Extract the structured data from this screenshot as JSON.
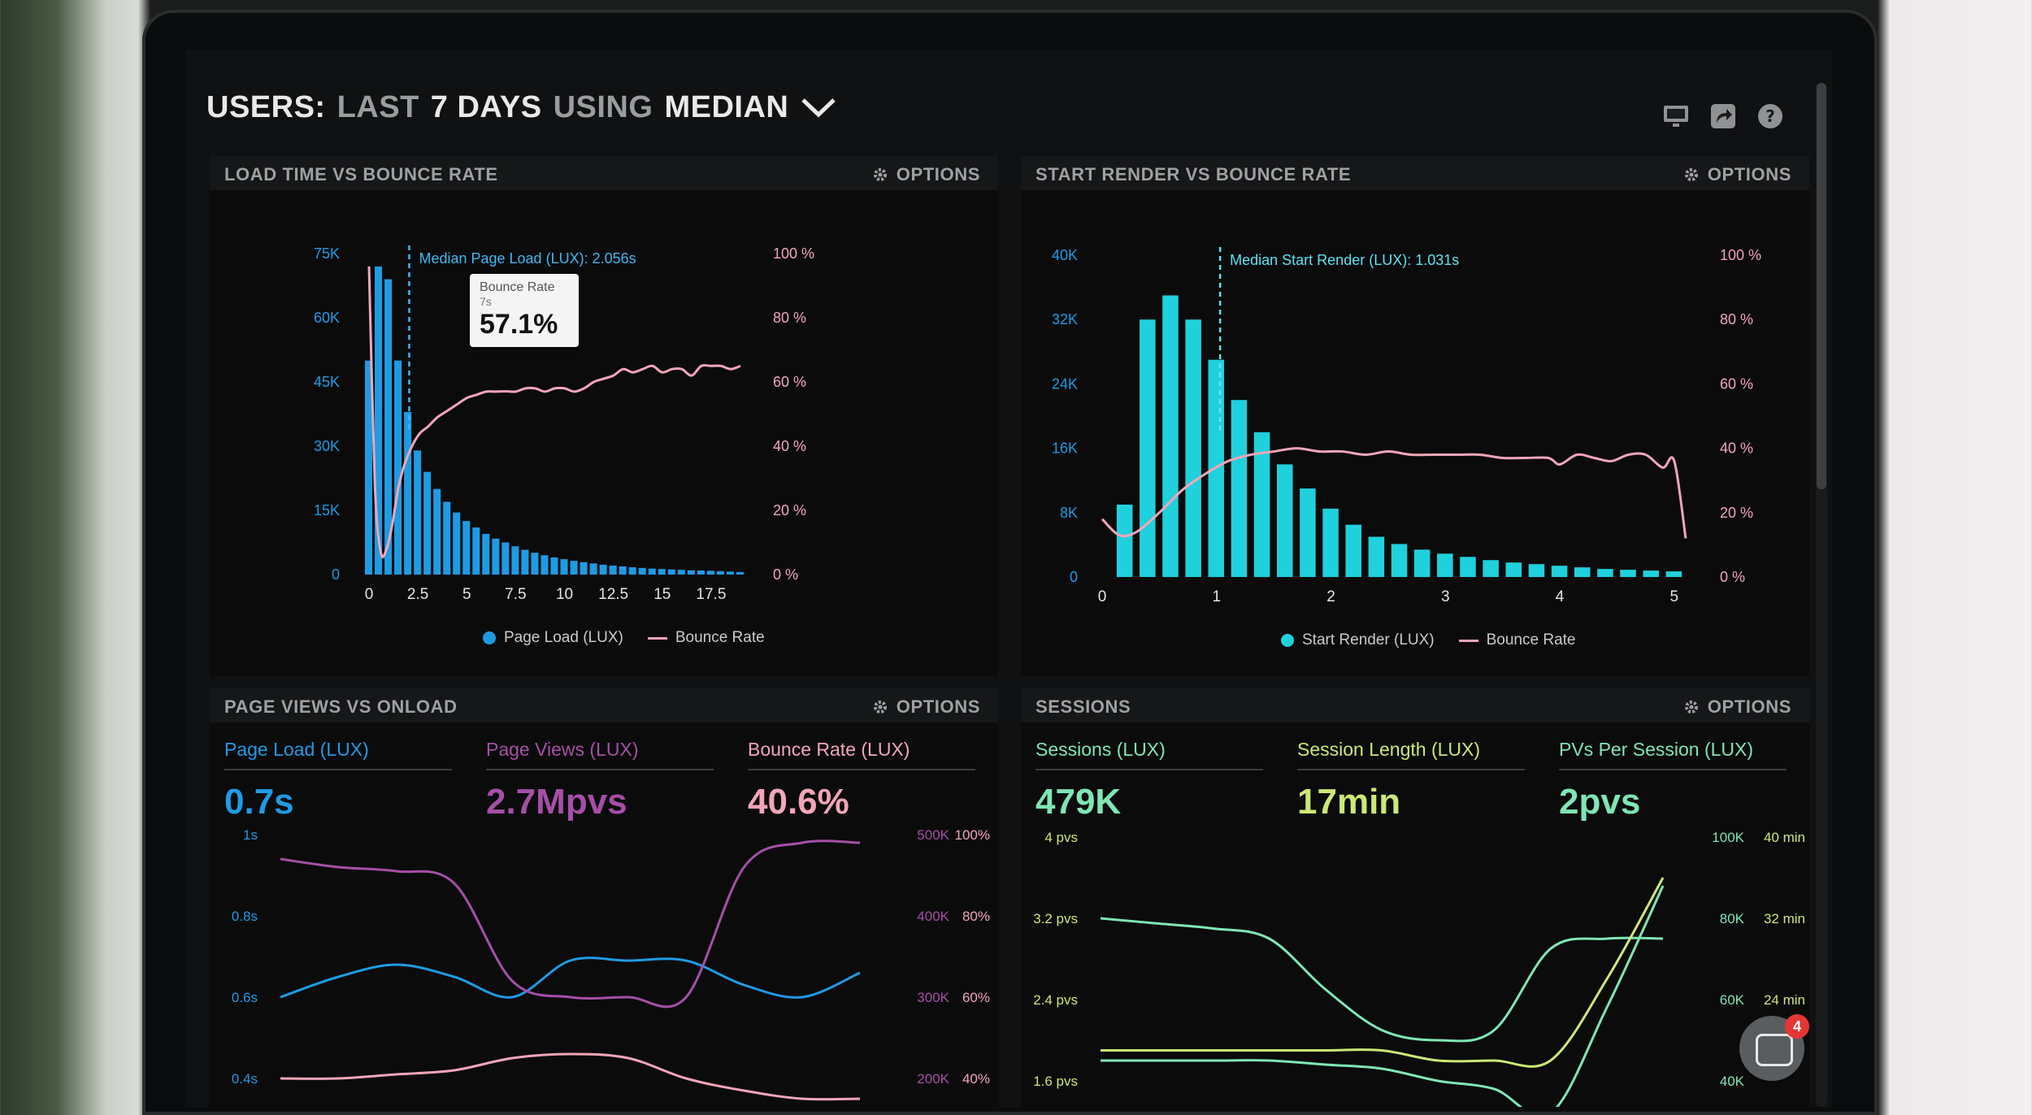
{
  "header": {
    "prefix": "USERS:",
    "range": "LAST",
    "range_value": "7 DAYS",
    "using": "USING",
    "stat": "MEDIAN"
  },
  "header_icons": [
    "monitor-icon",
    "share-icon",
    "help-icon"
  ],
  "panels": {
    "p1": {
      "title": "LOAD TIME VS BOUNCE RATE",
      "options": "OPTIONS"
    },
    "p2": {
      "title": "START RENDER VS BOUNCE RATE",
      "options": "OPTIONS"
    },
    "p3": {
      "title": "PAGE VIEWS VS ONLOAD",
      "options": "OPTIONS"
    },
    "p4": {
      "title": "SESSIONS",
      "options": "OPTIONS"
    }
  },
  "tooltip": {
    "label": "Bounce Rate",
    "sub": "7s",
    "value": "57.1%"
  },
  "metrics": {
    "p3": [
      {
        "label": "Page Load (LUX)",
        "value": "0.7s"
      },
      {
        "label": "Page Views (LUX)",
        "value": "2.7Mpvs"
      },
      {
        "label": "Bounce Rate (LUX)",
        "value": "40.6%"
      }
    ],
    "p4": [
      {
        "label": "Sessions (LUX)",
        "value": "479K"
      },
      {
        "label": "Session Length (LUX)",
        "value": "17min"
      },
      {
        "label": "PVs Per Session (LUX)",
        "value": "2pvs"
      }
    ]
  },
  "legends": {
    "p1": {
      "a": "Page Load (LUX)",
      "b": "Bounce Rate"
    },
    "p2": {
      "a": "Start Render (LUX)",
      "b": "Bounce Rate"
    }
  },
  "chat": {
    "badge": "4"
  },
  "colors": {
    "blue": "#1f9be3",
    "cyan": "#1fd1dc",
    "pink": "#f2a6b8",
    "purple": "#a54fa6",
    "green": "#7fe6b4",
    "lime": "#cbe877",
    "blue_text": "#1e9ce5"
  },
  "chart_data": [
    {
      "type": "bar",
      "title": "LOAD TIME VS BOUNCE RATE",
      "annotation": "Median Page Load (LUX): 2.056s",
      "median_x": 2.056,
      "x_ticks": [
        "0",
        "2.5",
        "5",
        "7.5",
        "10",
        "12.5",
        "15",
        "17.5"
      ],
      "xlim": [
        -0.25,
        19.5
      ],
      "y_ticks": [
        "0",
        "15K",
        "30K",
        "45K",
        "60K",
        "75K"
      ],
      "ylim": [
        0,
        75000
      ],
      "y2_ticks": [
        "0 %",
        "20 %",
        "40 %",
        "60 %",
        "80 %",
        "100 %"
      ],
      "y2lim": [
        0,
        100
      ],
      "bar_width": 0.5,
      "series": [
        {
          "name": "Page Load (LUX)",
          "kind": "bar",
          "x": [
            0,
            0.5,
            1,
            1.5,
            2,
            2.5,
            3,
            3.5,
            4,
            4.5,
            5,
            5.5,
            6,
            6.5,
            7,
            7.5,
            8,
            8.5,
            9,
            9.5,
            10,
            10.5,
            11,
            11.5,
            12,
            12.5,
            13,
            13.5,
            14,
            14.5,
            15,
            15.5,
            16,
            16.5,
            17,
            17.5,
            18,
            18.5,
            19
          ],
          "values": [
            50000,
            72000,
            69000,
            50000,
            38000,
            29000,
            24000,
            20000,
            17000,
            14500,
            12500,
            11000,
            9500,
            8400,
            7500,
            6600,
            5800,
            5100,
            4500,
            4000,
            3600,
            3200,
            2900,
            2600,
            2300,
            2100,
            1900,
            1700,
            1550,
            1400,
            1300,
            1200,
            1100,
            1000,
            950,
            900,
            800,
            700,
            600
          ]
        },
        {
          "name": "Bounce Rate",
          "kind": "line",
          "axis": "y2",
          "x": [
            0,
            0.3,
            0.6,
            0.9,
            1.2,
            1.5,
            1.8,
            2.2,
            2.6,
            3,
            3.5,
            4,
            4.5,
            5,
            5.5,
            6,
            6.5,
            7,
            7.5,
            8,
            8.5,
            9,
            9.5,
            10,
            10.5,
            11,
            11.5,
            12,
            12.5,
            13,
            13.5,
            14,
            14.5,
            15,
            15.5,
            16,
            16.5,
            17,
            17.5,
            18,
            18.5,
            19
          ],
          "values": [
            96,
            28,
            7,
            8,
            16,
            27,
            34,
            40,
            44,
            46,
            49,
            51,
            53,
            55,
            56,
            57,
            57,
            57.1,
            57,
            58,
            58,
            57,
            58,
            58,
            57,
            58,
            60,
            61,
            62,
            64,
            63,
            64,
            65,
            63,
            64,
            64,
            62,
            65,
            65,
            65,
            64,
            65
          ]
        }
      ]
    },
    {
      "type": "bar",
      "title": "START RENDER VS BOUNCE RATE",
      "annotation": "Median Start Render (LUX): 1.031s",
      "median_x": 1.031,
      "x_ticks": [
        "0",
        "1",
        "2",
        "3",
        "4",
        "5"
      ],
      "xlim": [
        0,
        5.2
      ],
      "y_ticks": [
        "0",
        "8K",
        "16K",
        "24K",
        "32K",
        "40K"
      ],
      "ylim": [
        0,
        40000
      ],
      "y2_ticks": [
        "0 %",
        "20 %",
        "40 %",
        "60 %",
        "80 %",
        "100 %"
      ],
      "y2lim": [
        0,
        100
      ],
      "bar_width": 0.16,
      "series": [
        {
          "name": "Start Render (LUX)",
          "kind": "bar",
          "x": [
            0.2,
            0.4,
            0.6,
            0.8,
            1.0,
            1.2,
            1.4,
            1.6,
            1.8,
            2.0,
            2.2,
            2.4,
            2.6,
            2.8,
            3.0,
            3.2,
            3.4,
            3.6,
            3.8,
            4.0,
            4.2,
            4.4,
            4.6,
            4.8,
            5.0
          ],
          "values": [
            9000,
            32000,
            35000,
            32000,
            27000,
            22000,
            18000,
            14000,
            11000,
            8500,
            6500,
            5000,
            4100,
            3400,
            2900,
            2500,
            2100,
            1800,
            1600,
            1400,
            1200,
            1000,
            900,
            800,
            700
          ]
        },
        {
          "name": "Bounce Rate",
          "kind": "line",
          "axis": "y2",
          "x": [
            0,
            0.15,
            0.3,
            0.5,
            0.7,
            0.9,
            1.1,
            1.3,
            1.5,
            1.7,
            1.9,
            2.1,
            2.3,
            2.5,
            2.7,
            2.9,
            3.1,
            3.3,
            3.5,
            3.7,
            3.9,
            4.0,
            4.15,
            4.3,
            4.45,
            4.6,
            4.75,
            4.9,
            5.0,
            5.1
          ],
          "values": [
            18,
            13,
            14,
            20,
            27,
            32,
            36,
            38,
            39,
            40,
            39,
            39,
            38,
            39,
            38,
            38,
            38,
            38,
            37,
            37,
            37,
            35,
            38,
            37,
            36,
            38,
            38,
            34,
            36,
            12
          ]
        }
      ]
    },
    {
      "type": "line",
      "title": "PAGE VIEWS VS ONLOAD",
      "y_ticks": [
        "0.4s",
        "0.6s",
        "0.8s",
        "1s"
      ],
      "ylim": [
        0.4,
        1.0
      ],
      "y2_ticks": [
        "200K",
        "300K",
        "400K",
        "500K"
      ],
      "y2lim": [
        200000,
        500000
      ],
      "y3_ticks": [
        "40%",
        "60%",
        "80%",
        "100%"
      ],
      "y3lim": [
        40,
        100
      ],
      "x": [
        0,
        1,
        2,
        3,
        4,
        5,
        6,
        7,
        8,
        9,
        10
      ],
      "series": [
        {
          "name": "Page Load (LUX)",
          "axis": "y",
          "values": [
            0.6,
            0.65,
            0.68,
            0.65,
            0.6,
            0.69,
            0.69,
            0.69,
            0.63,
            0.6,
            0.66
          ]
        },
        {
          "name": "Page Views (LUX)",
          "axis": "y2",
          "values": [
            470000,
            460000,
            455000,
            440000,
            320000,
            300000,
            300000,
            300000,
            460000,
            490000,
            490000
          ]
        },
        {
          "name": "Bounce Rate (LUX)",
          "axis": "y3",
          "values": [
            40,
            40,
            41,
            42,
            45,
            46,
            45,
            40,
            37,
            35,
            35
          ]
        }
      ]
    },
    {
      "type": "line",
      "title": "SESSIONS",
      "y_ticks": [
        "1.6 pvs",
        "2.4 pvs",
        "3.2 pvs",
        "4 pvs"
      ],
      "ylim": [
        1.6,
        4.0
      ],
      "y2_ticks": [
        "40K",
        "60K",
        "80K",
        "100K"
      ],
      "y2lim": [
        40000,
        100000
      ],
      "y3_ticks": [
        "24 min",
        "32 min",
        "40 min"
      ],
      "y3lim": [
        16,
        40
      ],
      "x": [
        0,
        1,
        2,
        3,
        4,
        5,
        6,
        7,
        8,
        9,
        10
      ],
      "series": [
        {
          "name": "PVs Per Session (LUX)",
          "axis": "y",
          "values": [
            3.2,
            3.15,
            3.1,
            3.0,
            2.5,
            2.1,
            2.0,
            2.1,
            2.9,
            3.0,
            3.0
          ]
        },
        {
          "name": "Sessions (LUX)",
          "axis": "y2",
          "values": [
            45000,
            45000,
            45000,
            45000,
            44000,
            43000,
            40000,
            38000,
            32000,
            58000,
            88000
          ]
        },
        {
          "name": "Session Length (LUX)",
          "axis": "y3",
          "values": [
            19,
            19,
            19,
            19,
            19,
            19,
            18,
            18,
            18,
            26,
            36
          ]
        }
      ]
    }
  ]
}
